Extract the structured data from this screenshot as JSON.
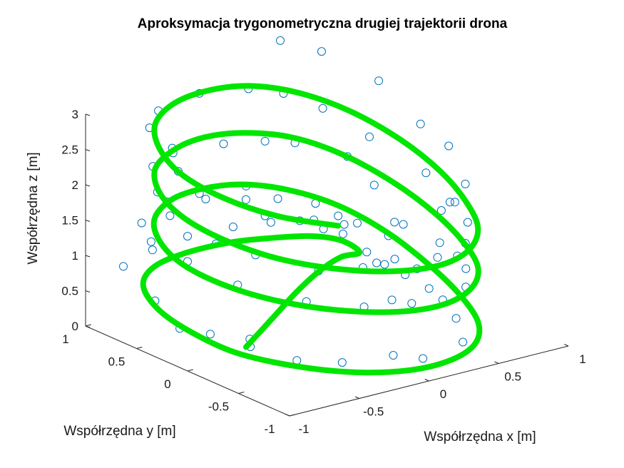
{
  "chart_data": {
    "type": "line",
    "projection": "3d",
    "title": "Aproksymacja trygonometryczna drugiej trajektorii drona",
    "xlabel": "Współrzędna x [m]",
    "ylabel": "Współrzędna y [m]",
    "zlabel": "Współrzędna z [m]",
    "xlim": [
      -1,
      1
    ],
    "ylim": [
      -1,
      1
    ],
    "zlim": [
      0,
      3
    ],
    "x_ticks": [
      "-1",
      "-0.5",
      "0",
      "0.5",
      "1"
    ],
    "y_ticks": [
      "-1",
      "-0.5",
      "0",
      "0.5",
      "1"
    ],
    "z_ticks": [
      "0",
      "0.5",
      "1",
      "1.5",
      "2",
      "2.5",
      "3"
    ],
    "grid": false,
    "series": [
      {
        "marker": "circle",
        "color": "#0072bd",
        "points": [
          {
            "x": -0.7,
            "y": -0.2,
            "z": 0.43
          },
          {
            "x": 0.21,
            "y": -0.35,
            "z": 0.63
          },
          {
            "x": 0.51,
            "y": -0.07,
            "z": 0.66
          },
          {
            "x": 0.64,
            "y": 0.31,
            "z": 0.5
          },
          {
            "x": 0.89,
            "y": 0.73,
            "z": 0.13
          },
          {
            "x": 0.9,
            "y": 0.84,
            "z": 0.21
          },
          {
            "x": 0.81,
            "y": 0.95,
            "z": 0.44
          },
          {
            "x": 0.67,
            "y": 0.95,
            "z": 0.58
          },
          {
            "x": 0.53,
            "y": 0.99,
            "z": 0.74
          },
          {
            "x": 0.3,
            "y": 0.96,
            "z": 0.85
          },
          {
            "x": 0.0,
            "y": 0.92,
            "z": 0.96
          },
          {
            "x": -0.32,
            "y": 0.93,
            "z": 0.98
          },
          {
            "x": -0.63,
            "y": 0.85,
            "z": 0.99
          },
          {
            "x": -0.89,
            "y": 0.78,
            "z": 0.93
          },
          {
            "x": -0.97,
            "y": 0.36,
            "z": 0.75
          },
          {
            "x": -0.99,
            "y": 0.09,
            "z": 0.54
          },
          {
            "x": -0.91,
            "y": -0.1,
            "z": 0.54
          },
          {
            "x": -0.82,
            "y": -0.37,
            "z": 0.49
          },
          {
            "x": -0.75,
            "y": -0.73,
            "z": 0.49
          },
          {
            "x": -0.52,
            "y": -0.86,
            "z": 0.43
          },
          {
            "x": -0.19,
            "y": -0.91,
            "z": 0.4
          },
          {
            "x": 0.03,
            "y": -0.9,
            "z": 0.24
          },
          {
            "x": 0.39,
            "y": -0.8,
            "z": 0.23
          },
          {
            "x": 0.59,
            "y": -0.46,
            "z": 0.25
          },
          {
            "x": 0.74,
            "y": 0.01,
            "z": 0.3
          },
          {
            "x": 0.72,
            "y": 0.32,
            "z": 0.53
          },
          {
            "x": 0.65,
            "y": 0.72,
            "z": 0.8
          },
          {
            "x": 0.51,
            "y": 0.81,
            "z": 1.11
          },
          {
            "x": 0.24,
            "y": 0.81,
            "z": 1.31
          },
          {
            "x": -0.04,
            "y": 0.74,
            "z": 1.48
          },
          {
            "x": -0.3,
            "y": 0.84,
            "z": 1.63
          },
          {
            "x": -0.57,
            "y": 0.79,
            "z": 1.68
          },
          {
            "x": -0.92,
            "y": 0.56,
            "z": 1.7
          },
          {
            "x": -1.02,
            "y": 0.33,
            "z": 1.63
          },
          {
            "x": -1.0,
            "y": 0.0,
            "z": 1.55
          },
          {
            "x": -0.86,
            "y": -0.3,
            "z": 1.34
          },
          {
            "x": -0.63,
            "y": -0.66,
            "z": 1.22
          },
          {
            "x": -0.37,
            "y": -0.87,
            "z": 1.15
          },
          {
            "x": -0.08,
            "y": -0.94,
            "z": 1.1
          },
          {
            "x": 0.15,
            "y": -0.93,
            "z": 1.03
          },
          {
            "x": 0.41,
            "y": -0.8,
            "z": 1.0
          },
          {
            "x": 0.66,
            "y": -0.46,
            "z": 0.92
          },
          {
            "x": 0.78,
            "y": -0.04,
            "z": 0.96
          },
          {
            "x": 0.76,
            "y": 0.29,
            "z": 1.02
          },
          {
            "x": 0.8,
            "y": 0.63,
            "z": 1.34
          },
          {
            "x": 0.68,
            "y": 0.73,
            "z": 1.74
          },
          {
            "x": 0.48,
            "y": 0.97,
            "z": 1.88
          },
          {
            "x": 0.17,
            "y": 0.84,
            "z": 2.14
          },
          {
            "x": -0.12,
            "y": 0.85,
            "z": 2.24
          },
          {
            "x": -0.46,
            "y": 0.88,
            "z": 2.26
          },
          {
            "x": -0.73,
            "y": 0.71,
            "z": 2.31
          },
          {
            "x": -0.96,
            "y": 0.35,
            "z": 2.29
          },
          {
            "x": -1.06,
            "y": 0.09,
            "z": 2.17
          },
          {
            "x": -1.03,
            "y": -0.32,
            "z": 2.02
          },
          {
            "x": -0.9,
            "y": -0.53,
            "z": 1.93
          },
          {
            "x": -0.66,
            "y": -0.82,
            "z": 1.77
          },
          {
            "x": -0.4,
            "y": -0.9,
            "z": 1.74
          },
          {
            "x": -0.13,
            "y": -1.06,
            "z": 1.69
          },
          {
            "x": 0.24,
            "y": -0.95,
            "z": 1.62
          },
          {
            "x": 0.43,
            "y": -0.77,
            "z": 1.59
          },
          {
            "x": 0.68,
            "y": -0.45,
            "z": 1.56
          },
          {
            "x": 0.75,
            "y": -0.18,
            "z": 1.64
          },
          {
            "x": 0.9,
            "y": 0.26,
            "z": 1.7
          },
          {
            "x": 0.78,
            "y": 0.65,
            "z": 2.02
          },
          {
            "x": 0.65,
            "y": 0.93,
            "z": 2.31
          },
          {
            "x": 0.39,
            "y": 0.96,
            "z": 2.63
          },
          {
            "x": 0.11,
            "y": 0.92,
            "z": 2.86
          },
          {
            "x": -0.22,
            "y": 0.95,
            "z": 2.94
          },
          {
            "x": -0.58,
            "y": 0.86,
            "z": 2.93
          },
          {
            "x": -0.79,
            "y": 0.66,
            "z": 2.92
          },
          {
            "x": -0.89,
            "y": 0.3,
            "z": 2.91
          },
          {
            "x": -1.03,
            "y": 0.05,
            "z": 2.81
          },
          {
            "x": -1.06,
            "y": -0.26,
            "z": 2.63
          },
          {
            "x": -0.92,
            "y": -0.65,
            "z": 2.57
          },
          {
            "x": -0.65,
            "y": -0.76,
            "z": 2.45
          },
          {
            "x": -0.47,
            "y": -0.94,
            "z": 2.43
          },
          {
            "x": -0.32,
            "y": -1.1,
            "z": 2.47
          },
          {
            "x": -0.77,
            "y": -0.26,
            "z": 2.67
          },
          {
            "x": 0.14,
            "y": -0.93,
            "z": 2.3
          },
          {
            "x": 0.34,
            "y": -0.79,
            "z": 2.23
          },
          {
            "x": 0.59,
            "y": -0.55,
            "z": 2.21
          },
          {
            "x": 0.8,
            "y": -0.1,
            "z": 2.36
          },
          {
            "x": 0.81,
            "y": 0.19,
            "z": 2.48
          },
          {
            "x": 0.81,
            "y": 0.6,
            "z": 2.83
          },
          {
            "x": 0.62,
            "y": 0.9,
            "z": 3.15
          },
          {
            "x": 0.36,
            "y": 0.95,
            "z": 3.4
          },
          {
            "x": -0.49,
            "y": -0.78,
            "z": 2.44
          },
          {
            "x": 0.09,
            "y": -0.48,
            "z": 1.68
          },
          {
            "x": 0.31,
            "y": -0.66,
            "z": 1.38
          }
        ]
      },
      {
        "style": "line",
        "color": "#00e600",
        "points": [
          {
            "x": -0.8,
            "y": -0.3,
            "z": 0.43
          },
          {
            "x": -0.4,
            "y": 0.0,
            "z": 0.43
          },
          {
            "x": 0.0,
            "y": 0.3,
            "z": 0.43
          },
          {
            "x": 0.35,
            "y": 0.55,
            "z": 0.4
          },
          {
            "x": 0.65,
            "y": 0.75,
            "z": 0.32
          },
          {
            "x": 0.87,
            "y": 0.87,
            "z": 0.2
          },
          {
            "x": 0.8,
            "y": 0.95,
            "z": 0.35
          },
          {
            "x": 0.6,
            "y": 0.97,
            "z": 0.5
          },
          {
            "x": 0.3,
            "y": 0.97,
            "z": 0.62
          },
          {
            "x": 0.0,
            "y": 0.95,
            "z": 0.72
          },
          {
            "x": -0.35,
            "y": 0.9,
            "z": 0.78
          },
          {
            "x": -0.65,
            "y": 0.8,
            "z": 0.8
          },
          {
            "x": -0.88,
            "y": 0.6,
            "z": 0.78
          },
          {
            "x": -1.0,
            "y": 0.3,
            "z": 0.7
          },
          {
            "x": -1.0,
            "y": 0.0,
            "z": 0.58
          },
          {
            "x": -0.92,
            "y": -0.35,
            "z": 0.45
          },
          {
            "x": -0.72,
            "y": -0.65,
            "z": 0.35
          },
          {
            "x": -0.45,
            "y": -0.88,
            "z": 0.27
          },
          {
            "x": -0.12,
            "y": -0.98,
            "z": 0.2
          },
          {
            "x": 0.2,
            "y": -0.95,
            "z": 0.17
          },
          {
            "x": 0.48,
            "y": -0.8,
            "z": 0.17
          },
          {
            "x": 0.68,
            "y": -0.55,
            "z": 0.22
          },
          {
            "x": 0.8,
            "y": -0.2,
            "z": 0.33
          },
          {
            "x": 0.84,
            "y": 0.15,
            "z": 0.5
          },
          {
            "x": 0.8,
            "y": 0.5,
            "z": 0.75
          },
          {
            "x": 0.65,
            "y": 0.78,
            "z": 1.03
          },
          {
            "x": 0.4,
            "y": 0.93,
            "z": 1.28
          },
          {
            "x": 0.1,
            "y": 0.97,
            "z": 1.48
          },
          {
            "x": -0.22,
            "y": 0.93,
            "z": 1.6
          },
          {
            "x": -0.52,
            "y": 0.82,
            "z": 1.66
          },
          {
            "x": -0.8,
            "y": 0.6,
            "z": 1.66
          },
          {
            "x": -0.97,
            "y": 0.3,
            "z": 1.6
          },
          {
            "x": -1.02,
            "y": 0.0,
            "z": 1.5
          },
          {
            "x": -0.95,
            "y": -0.32,
            "z": 1.38
          },
          {
            "x": -0.78,
            "y": -0.6,
            "z": 1.26
          },
          {
            "x": -0.52,
            "y": -0.83,
            "z": 1.15
          },
          {
            "x": -0.2,
            "y": -0.97,
            "z": 1.06
          },
          {
            "x": 0.12,
            "y": -0.97,
            "z": 1.0
          },
          {
            "x": 0.42,
            "y": -0.83,
            "z": 0.98
          },
          {
            "x": 0.66,
            "y": -0.58,
            "z": 1.0
          },
          {
            "x": 0.8,
            "y": -0.25,
            "z": 1.08
          },
          {
            "x": 0.85,
            "y": 0.1,
            "z": 1.25
          },
          {
            "x": 0.8,
            "y": 0.45,
            "z": 1.5
          },
          {
            "x": 0.65,
            "y": 0.75,
            "z": 1.78
          },
          {
            "x": 0.42,
            "y": 0.92,
            "z": 2.02
          },
          {
            "x": 0.12,
            "y": 0.97,
            "z": 2.2
          },
          {
            "x": -0.2,
            "y": 0.93,
            "z": 2.32
          },
          {
            "x": -0.5,
            "y": 0.82,
            "z": 2.36
          },
          {
            "x": -0.78,
            "y": 0.62,
            "z": 2.35
          },
          {
            "x": -0.96,
            "y": 0.32,
            "z": 2.28
          },
          {
            "x": -1.02,
            "y": 0.0,
            "z": 2.17
          },
          {
            "x": -0.96,
            "y": -0.32,
            "z": 2.03
          },
          {
            "x": -0.8,
            "y": -0.6,
            "z": 1.88
          },
          {
            "x": -0.55,
            "y": -0.82,
            "z": 1.75
          },
          {
            "x": -0.25,
            "y": -0.96,
            "z": 1.65
          },
          {
            "x": 0.08,
            "y": -0.98,
            "z": 1.58
          },
          {
            "x": 0.38,
            "y": -0.86,
            "z": 1.56
          },
          {
            "x": 0.63,
            "y": -0.62,
            "z": 1.6
          },
          {
            "x": 0.78,
            "y": -0.3,
            "z": 1.7
          },
          {
            "x": 0.85,
            "y": 0.05,
            "z": 1.88
          },
          {
            "x": 0.82,
            "y": 0.4,
            "z": 2.12
          },
          {
            "x": 0.68,
            "y": 0.7,
            "z": 2.4
          },
          {
            "x": 0.45,
            "y": 0.9,
            "z": 2.65
          },
          {
            "x": 0.15,
            "y": 0.97,
            "z": 2.85
          },
          {
            "x": -0.18,
            "y": 0.94,
            "z": 2.96
          },
          {
            "x": -0.5,
            "y": 0.83,
            "z": 3.0
          },
          {
            "x": -0.78,
            "y": 0.62,
            "z": 2.98
          },
          {
            "x": -0.96,
            "y": 0.32,
            "z": 2.9
          },
          {
            "x": -1.03,
            "y": 0.0,
            "z": 2.78
          },
          {
            "x": -0.96,
            "y": -0.32,
            "z": 2.62
          },
          {
            "x": -0.78,
            "y": -0.6,
            "z": 2.46
          },
          {
            "x": -0.52,
            "y": -0.82,
            "z": 2.34
          }
        ]
      }
    ]
  }
}
